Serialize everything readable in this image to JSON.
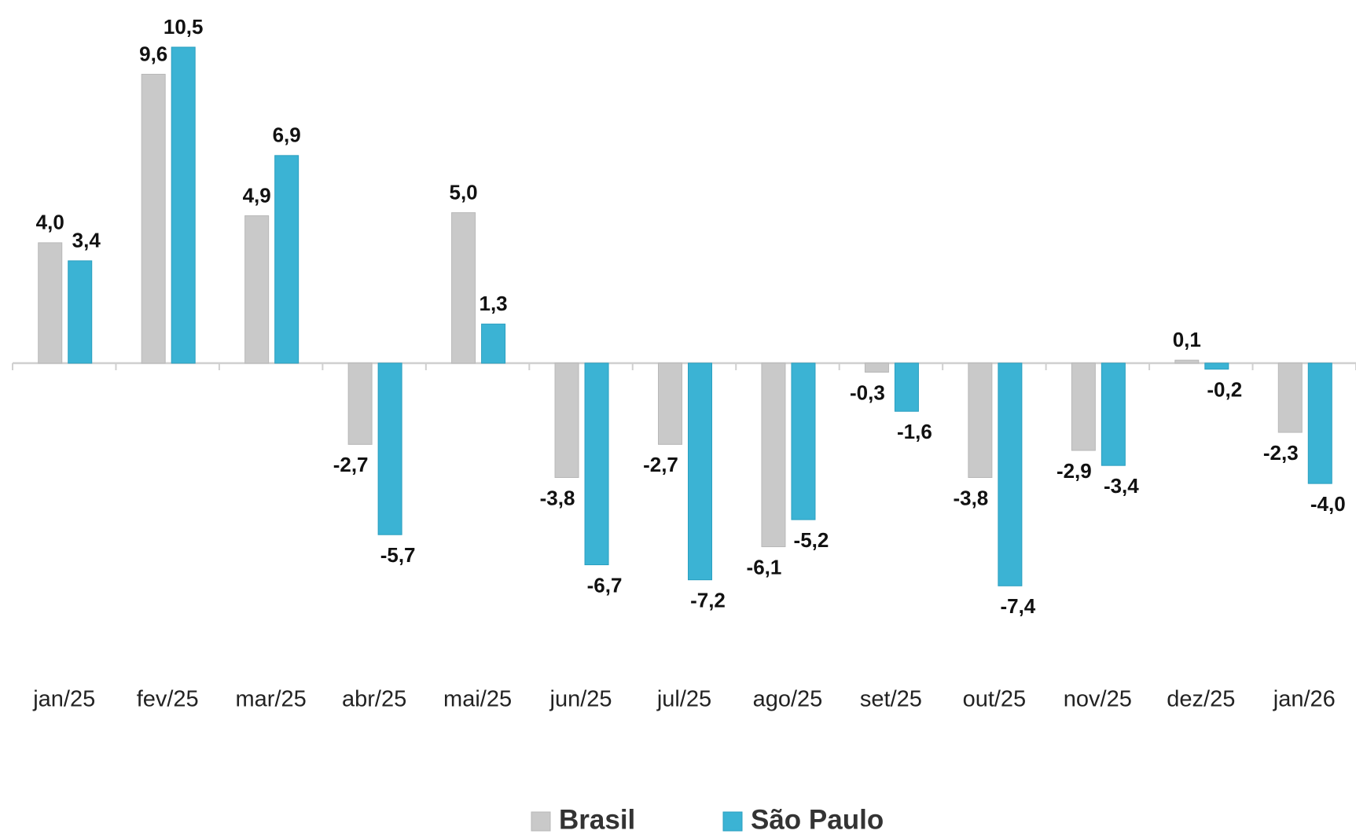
{
  "chart_data": {
    "type": "bar",
    "categories": [
      "jan/25",
      "fev/25",
      "mar/25",
      "abr/25",
      "mai/25",
      "jun/25",
      "jul/25",
      "ago/25",
      "set/25",
      "out/25",
      "nov/25",
      "dez/25",
      "jan/26"
    ],
    "series": [
      {
        "name": "Brasil",
        "color": "#c9c9c9",
        "values": [
          4.0,
          9.6,
          4.9,
          -2.7,
          5.0,
          -3.8,
          -2.7,
          -6.1,
          -0.3,
          -3.8,
          -2.9,
          0.1,
          -2.3
        ],
        "value_labels": [
          "4,0",
          "9,6",
          "4,9",
          "-2,7",
          "5,0",
          "-3,8",
          "-2,7",
          "-6,1",
          "-0,3",
          "-3,8",
          "-2,9",
          "0,1",
          "-2,3"
        ]
      },
      {
        "name": "São Paulo",
        "color": "#3bb3d4",
        "values": [
          3.4,
          10.5,
          6.9,
          -5.7,
          1.3,
          -6.7,
          -7.2,
          -5.2,
          -1.6,
          -7.4,
          -3.4,
          -0.2,
          -4.0
        ],
        "value_labels": [
          "3,4",
          "10,5",
          "6,9",
          "-5,7",
          "1,3",
          "-6,7",
          "-7,2",
          "-5,2",
          "-1,6",
          "-7,4",
          "-3,4",
          "-0,2",
          "-4,0"
        ]
      }
    ],
    "legend": "bottom"
  }
}
